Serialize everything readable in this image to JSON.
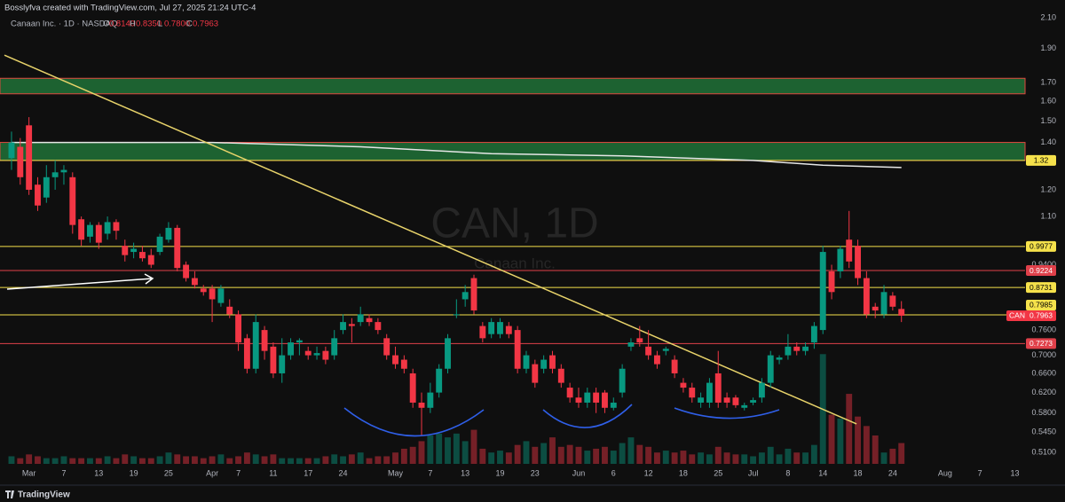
{
  "header": {
    "credit": "Bosslyfva created with TradingView.com, Jul 27, 2025 21:24 UTC-4",
    "legend_name": "Canaan Inc. · 1D · NASDAQ"
  },
  "chart_data": {
    "type": "candlestick",
    "symbol": "CAN",
    "watermark": "CAN, 1D",
    "watermark_sub": "Canaan Inc.",
    "log": true,
    "grid": false,
    "up_color": "#089981",
    "down_color": "#f23645",
    "legend_keys": [
      "O",
      "H",
      "L",
      "C"
    ],
    "last_labels": [
      "0.8140",
      "0.8350",
      "0.7800",
      "0.7963"
    ],
    "open": [
      1.33,
      1.38,
      1.48,
      1.22,
      1.17,
      1.25,
      1.27,
      1.25,
      1.09,
      1.03,
      1.07,
      1.04,
      1.08,
      1.0,
      0.98,
      0.98,
      0.97,
      0.98,
      1.02,
      1.06,
      0.94,
      0.9,
      0.87,
      0.87,
      0.83,
      0.82,
      0.8,
      0.74,
      0.67,
      0.76,
      0.72,
      0.66,
      0.7,
      0.73,
      0.71,
      0.7,
      0.71,
      0.7,
      0.76,
      0.775,
      0.78,
      0.79,
      0.78,
      0.74,
      0.7,
      0.69,
      0.66,
      0.6,
      0.59,
      0.62,
      0.67,
      0.8,
      0.84,
      0.9,
      0.77,
      0.75,
      0.75,
      0.77,
      0.76,
      0.67,
      0.68,
      0.67,
      0.7,
      0.67,
      0.63,
      0.61,
      0.6,
      0.62,
      0.62,
      0.59,
      0.62,
      0.72,
      0.74,
      0.72,
      0.7,
      0.71,
      0.69,
      0.64,
      0.63,
      0.6,
      0.6,
      0.66,
      0.61,
      0.61,
      0.59,
      0.6,
      0.61,
      0.64,
      0.69,
      0.7,
      0.72,
      0.71,
      0.73,
      0.76,
      0.92,
      0.92,
      1.02,
      1.0,
      0.9,
      0.82,
      0.8,
      0.85,
      0.814
    ],
    "high": [
      1.45,
      1.42,
      1.52,
      1.25,
      1.3,
      1.32,
      1.3,
      1.27,
      1.1,
      1.08,
      1.08,
      1.1,
      1.09,
      1.02,
      1.01,
      1.0,
      0.99,
      1.04,
      1.08,
      1.07,
      0.95,
      0.92,
      0.88,
      0.88,
      0.88,
      0.84,
      0.81,
      0.75,
      0.8,
      0.77,
      0.73,
      0.74,
      0.74,
      0.74,
      0.72,
      0.72,
      0.72,
      0.76,
      0.8,
      0.79,
      0.82,
      0.8,
      0.79,
      0.75,
      0.72,
      0.7,
      0.67,
      0.62,
      0.64,
      0.68,
      0.75,
      0.84,
      0.88,
      0.91,
      0.78,
      0.79,
      0.79,
      0.78,
      0.77,
      0.71,
      0.69,
      0.7,
      0.71,
      0.68,
      0.64,
      0.63,
      0.63,
      0.63,
      0.625,
      0.61,
      0.68,
      0.74,
      0.77,
      0.76,
      0.71,
      0.72,
      0.7,
      0.65,
      0.64,
      0.62,
      0.65,
      0.71,
      0.62,
      0.615,
      0.6,
      0.61,
      0.65,
      0.71,
      0.7,
      0.75,
      0.73,
      0.73,
      0.78,
      1.0,
      0.94,
      1.0,
      1.12,
      1.02,
      0.92,
      0.83,
      0.88,
      0.86,
      0.835
    ],
    "low": [
      1.28,
      1.22,
      1.18,
      1.12,
      1.15,
      1.2,
      1.22,
      1.04,
      1.0,
      1.01,
      0.99,
      1.02,
      1.02,
      0.95,
      0.96,
      0.95,
      0.93,
      0.97,
      1.01,
      0.92,
      0.89,
      0.87,
      0.85,
      0.78,
      0.82,
      0.79,
      0.71,
      0.66,
      0.66,
      0.69,
      0.65,
      0.64,
      0.69,
      0.7,
      0.69,
      0.69,
      0.68,
      0.69,
      0.75,
      0.73,
      0.77,
      0.77,
      0.75,
      0.69,
      0.67,
      0.66,
      0.59,
      0.54,
      0.58,
      0.61,
      0.66,
      0.79,
      0.82,
      0.8,
      0.73,
      0.74,
      0.74,
      0.74,
      0.66,
      0.66,
      0.63,
      0.66,
      0.66,
      0.63,
      0.6,
      0.59,
      0.59,
      0.58,
      0.58,
      0.585,
      0.61,
      0.71,
      0.72,
      0.69,
      0.67,
      0.7,
      0.65,
      0.62,
      0.6,
      0.59,
      0.59,
      0.59,
      0.59,
      0.59,
      0.585,
      0.595,
      0.6,
      0.63,
      0.68,
      0.69,
      0.7,
      0.7,
      0.715,
      0.75,
      0.84,
      0.9,
      0.93,
      0.88,
      0.79,
      0.79,
      0.79,
      0.81,
      0.78
    ],
    "close": [
      1.4,
      1.25,
      1.2,
      1.14,
      1.25,
      1.27,
      1.28,
      1.07,
      1.02,
      1.07,
      1.01,
      1.08,
      1.05,
      0.97,
      0.99,
      0.96,
      0.94,
      1.03,
      1.06,
      0.93,
      0.9,
      0.88,
      0.86,
      0.84,
      0.87,
      0.8,
      0.73,
      0.67,
      0.78,
      0.71,
      0.66,
      0.7,
      0.73,
      0.735,
      0.7,
      0.705,
      0.69,
      0.74,
      0.78,
      0.77,
      0.8,
      0.78,
      0.76,
      0.7,
      0.68,
      0.67,
      0.6,
      0.59,
      0.62,
      0.67,
      0.74,
      0.8,
      0.86,
      0.81,
      0.74,
      0.78,
      0.78,
      0.75,
      0.67,
      0.7,
      0.64,
      0.69,
      0.67,
      0.64,
      0.61,
      0.6,
      0.62,
      0.6,
      0.59,
      0.6,
      0.67,
      0.73,
      0.73,
      0.7,
      0.68,
      0.715,
      0.66,
      0.63,
      0.61,
      0.61,
      0.64,
      0.6,
      0.6,
      0.595,
      0.595,
      0.605,
      0.64,
      0.7,
      0.695,
      0.72,
      0.71,
      0.72,
      0.77,
      0.98,
      0.86,
      0.99,
      0.95,
      0.9,
      0.8,
      0.81,
      0.86,
      0.82,
      0.7963
    ],
    "volume": [
      4,
      3,
      5,
      4,
      3,
      3,
      4,
      3,
      3,
      3,
      3,
      4,
      3,
      5,
      4,
      3,
      3,
      4,
      6,
      5,
      4,
      4,
      3,
      4,
      5,
      3,
      4,
      6,
      5,
      4,
      5,
      3,
      3,
      3,
      3,
      3,
      4,
      5,
      4,
      5,
      6,
      3,
      4,
      4,
      6,
      8,
      9,
      12,
      15,
      16,
      14,
      16,
      12,
      18,
      8,
      6,
      7,
      6,
      10,
      12,
      9,
      11,
      14,
      9,
      10,
      9,
      7,
      8,
      9,
      7,
      11,
      14,
      10,
      9,
      6,
      7,
      6,
      7,
      5,
      6,
      5,
      9,
      6,
      5,
      5,
      4,
      6,
      9,
      5,
      8,
      6,
      6,
      10,
      58,
      26,
      24,
      37,
      25,
      20,
      15,
      6,
      8,
      11
    ],
    "vlim": [
      0,
      60
    ],
    "ylim": [
      0.468,
      2.175
    ],
    "yticks": [
      {
        "value": 2.1,
        "label": "2.10"
      },
      {
        "value": 1.9,
        "label": "1.90"
      },
      {
        "value": 1.7,
        "label": "1.70"
      },
      {
        "value": 1.6,
        "label": "1.60"
      },
      {
        "value": 1.5,
        "label": "1.50"
      },
      {
        "value": 1.4,
        "label": "1.40"
      },
      {
        "value": 1.2,
        "label": "1.20"
      },
      {
        "value": 1.1,
        "label": "1.10"
      },
      {
        "value": 0.94,
        "label": "0.9400"
      },
      {
        "value": 0.76,
        "label": "0.7600"
      },
      {
        "value": 0.7,
        "label": "0.7000"
      },
      {
        "value": 0.66,
        "label": "0.6600"
      },
      {
        "value": 0.62,
        "label": "0.6200"
      },
      {
        "value": 0.58,
        "label": "0.5800"
      },
      {
        "value": 0.545,
        "label": "0.5450"
      },
      {
        "value": 0.51,
        "label": "0.5100"
      }
    ],
    "xlim": [
      -1.32,
      116.17
    ],
    "xticks": [
      {
        "value": 2,
        "label": "Mar"
      },
      {
        "value": 6,
        "label": "7"
      },
      {
        "value": 10,
        "label": "13"
      },
      {
        "value": 14,
        "label": "19"
      },
      {
        "value": 18,
        "label": "25"
      },
      {
        "value": 23,
        "label": "Apr"
      },
      {
        "value": 26,
        "label": "7"
      },
      {
        "value": 30,
        "label": "11"
      },
      {
        "value": 34,
        "label": "17"
      },
      {
        "value": 38,
        "label": "24"
      },
      {
        "value": 44,
        "label": "May"
      },
      {
        "value": 48,
        "label": "7"
      },
      {
        "value": 52,
        "label": "13"
      },
      {
        "value": 56,
        "label": "19"
      },
      {
        "value": 60,
        "label": "23"
      },
      {
        "value": 65,
        "label": "Jun"
      },
      {
        "value": 69,
        "label": "6"
      },
      {
        "value": 73,
        "label": "12"
      },
      {
        "value": 77,
        "label": "18"
      },
      {
        "value": 81,
        "label": "25"
      },
      {
        "value": 85,
        "label": "Jul"
      },
      {
        "value": 89,
        "label": "8"
      },
      {
        "value": 93,
        "label": "14"
      },
      {
        "value": 97,
        "label": "18"
      },
      {
        "value": 101,
        "label": "24"
      },
      {
        "value": 107,
        "label": "Aug"
      },
      {
        "value": 111,
        "label": "7"
      },
      {
        "value": 115,
        "label": "13"
      }
    ],
    "levels": [
      {
        "value": 1.32,
        "color": "#f5e14b"
      },
      {
        "value": 0.9977,
        "color": "#f5e14b"
      },
      {
        "value": 0.9224,
        "color": "#e0404a"
      },
      {
        "value": 0.8731,
        "color": "#f5e14b"
      },
      {
        "value": 0.7985,
        "color": "#f5e14b"
      },
      {
        "value": 0.7273,
        "color": "#e0404a"
      }
    ],
    "zones": [
      [
        1.64,
        1.725
      ],
      [
        1.32,
        1.4
      ]
    ],
    "zone_fill": "#1f6b35",
    "zone_border": "#e0483f",
    "ma": {
      "x": [
        0,
        23,
        40,
        55,
        70,
        85,
        93,
        102
      ],
      "values": [
        1.4,
        1.4,
        1.38,
        1.35,
        1.34,
        1.32,
        1.3,
        1.29
      ],
      "color": "#e6e6e6"
    },
    "trendline": {
      "x": [
        -0.81,
        96.85
      ],
      "values": [
        1.86,
        0.56
      ],
      "color": "#e8d36a"
    }
  },
  "footer": {
    "brand": "TradingView"
  }
}
